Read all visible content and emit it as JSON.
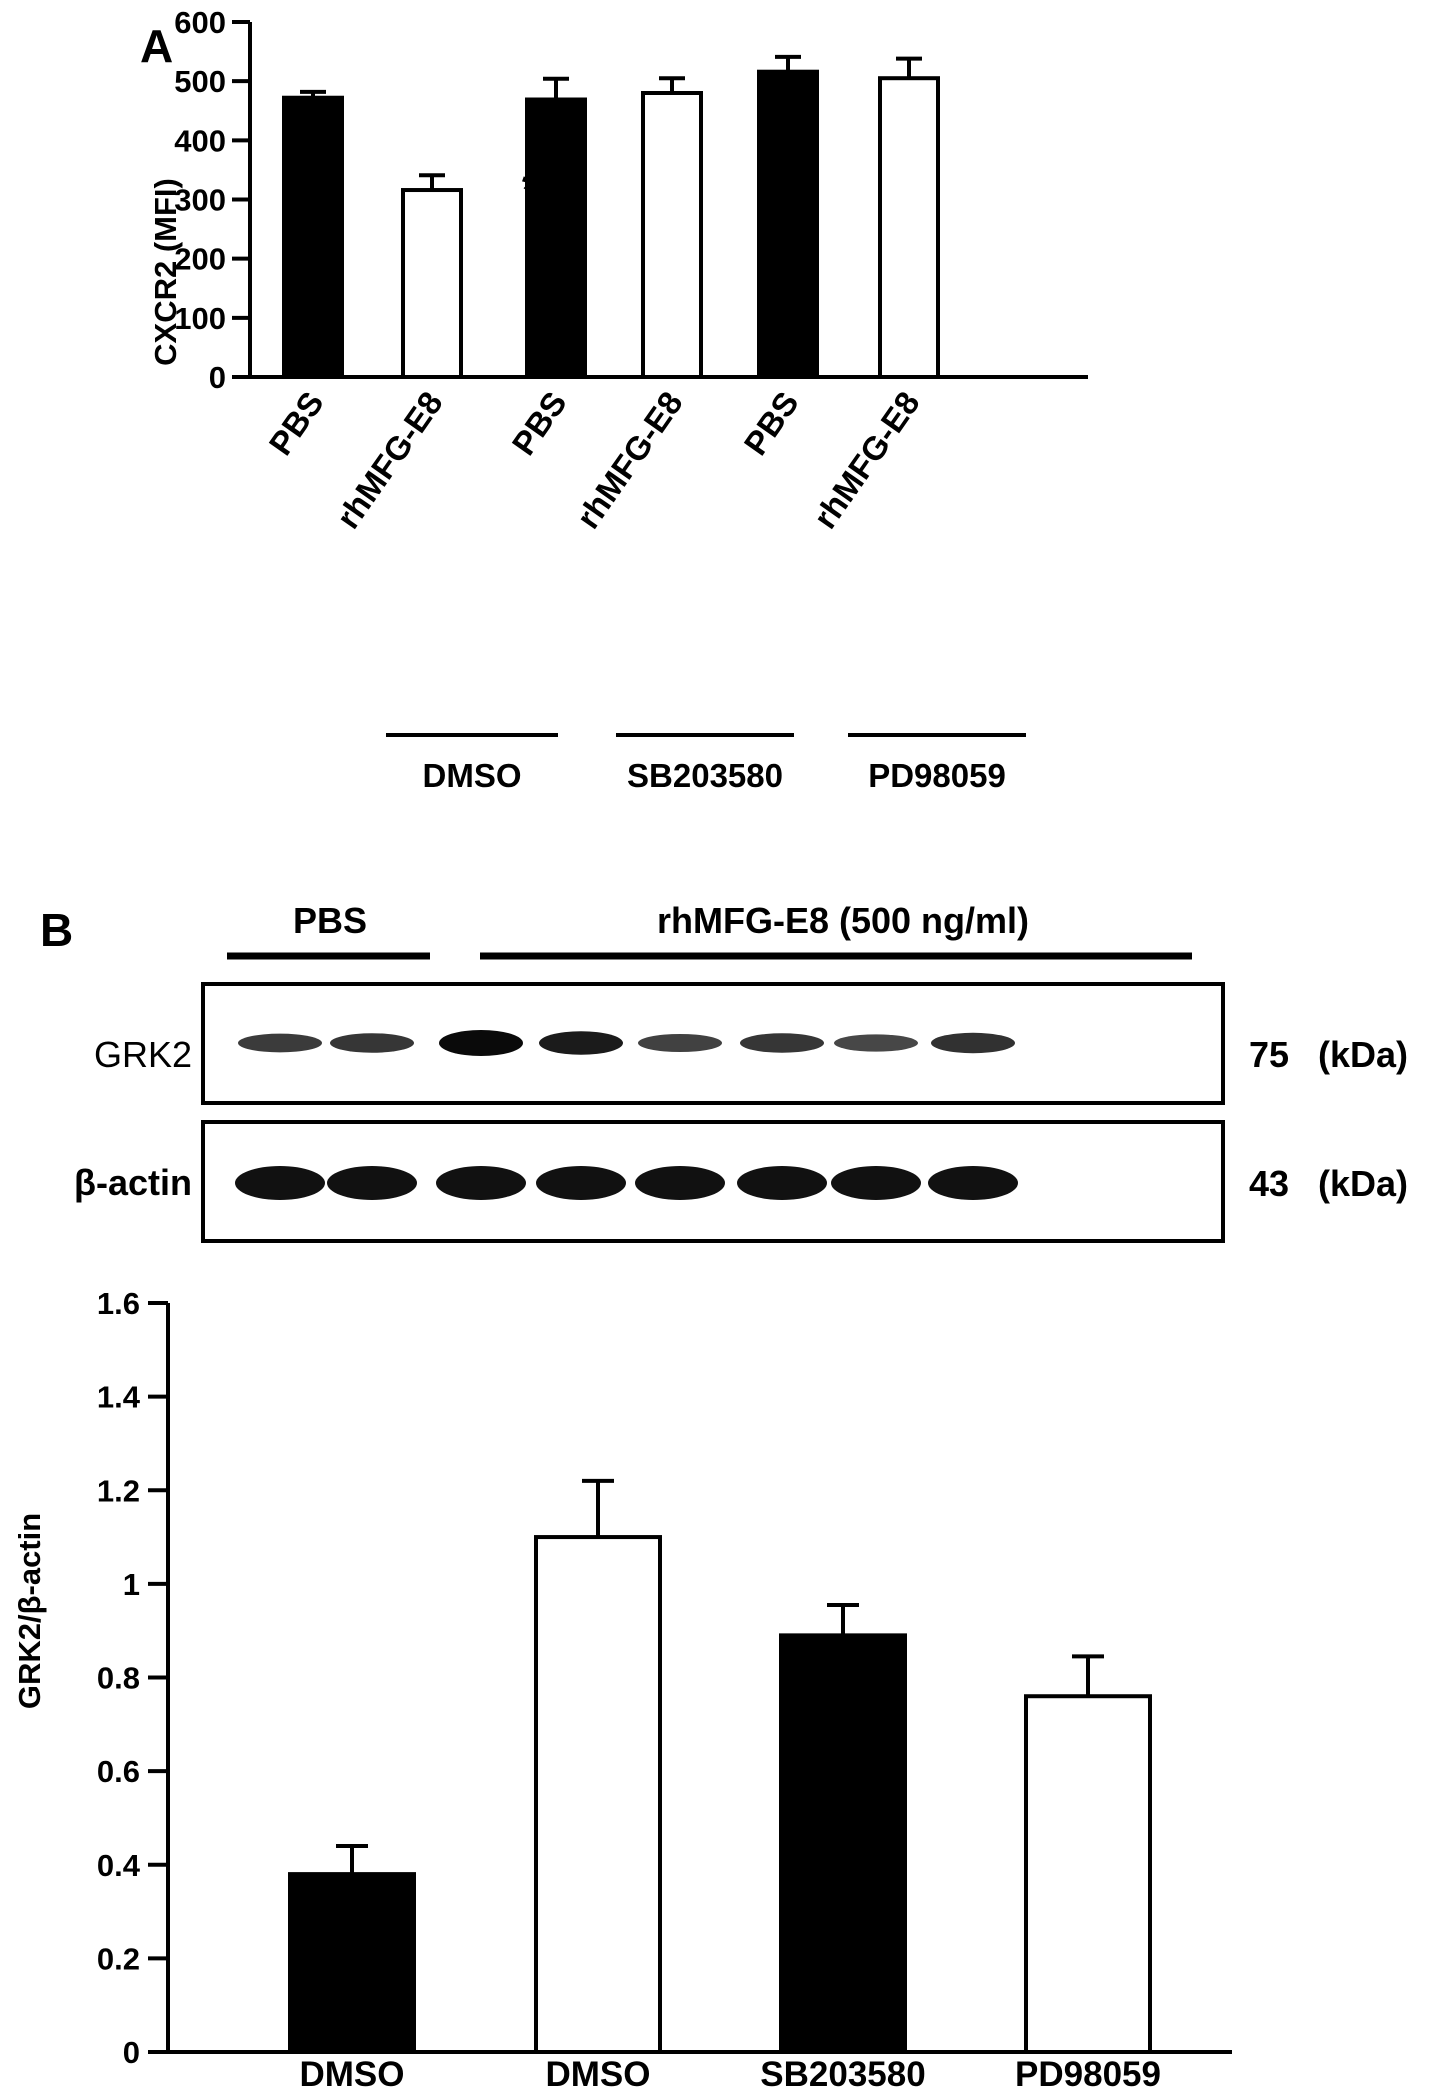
{
  "panel_a": {
    "letter": "A",
    "group_labels": [
      "DMSO",
      "SB203580",
      "PD98059"
    ],
    "significance_marker": "*"
  },
  "panel_b": {
    "letter": "B",
    "blot": {
      "header_pbs": "PBS",
      "header_rh": "rhMFG-E8 (500 ng/ml)",
      "rows": [
        {
          "label": "GRK2",
          "size": "75",
          "unit": "(kDa)",
          "intensities": [
            0.55,
            0.6,
            1.0,
            0.85,
            0.5,
            0.6,
            0.45,
            0.65
          ]
        },
        {
          "label": "β-actin",
          "size": "43",
          "unit": "(kDa)",
          "intensities": [
            1,
            1,
            1,
            1,
            1,
            1,
            1,
            1
          ]
        }
      ]
    }
  },
  "chart_data": [
    {
      "type": "bar",
      "title": "",
      "xlabel": "",
      "ylabel": "CXCR2 (MFI)",
      "ylim": [
        0,
        600
      ],
      "yticks": [
        0,
        100,
        200,
        300,
        400,
        500,
        600
      ],
      "categories": [
        "PBS",
        "rhMFG-E8",
        "PBS",
        "rhMFG-E8",
        "PBS",
        "rhMFG-E8"
      ],
      "values": [
        472,
        316,
        469,
        480,
        516,
        505
      ],
      "errors": [
        10,
        25,
        35,
        25,
        25,
        33
      ],
      "fill": [
        "#000000",
        "#ffffff",
        "#000000",
        "#ffffff",
        "#000000",
        "#ffffff"
      ],
      "grid": false
    },
    {
      "type": "bar",
      "title": "",
      "xlabel": "",
      "ylabel": "GRK2/β-actin",
      "ylim": [
        0,
        1.6
      ],
      "yticks": [
        "0",
        "0.2",
        "0.4",
        "0.6",
        "0.8",
        "1",
        "1.2",
        "1.4",
        "1.6"
      ],
      "categories": [
        "DMSO",
        "DMSO",
        "SB203580",
        "PD98059"
      ],
      "values": [
        0.38,
        1.1,
        0.89,
        0.76
      ],
      "errors": [
        0.06,
        0.12,
        0.065,
        0.085
      ],
      "fill": [
        "#000000",
        "#ffffff",
        "#000000",
        "#ffffff"
      ],
      "grid": false
    }
  ]
}
